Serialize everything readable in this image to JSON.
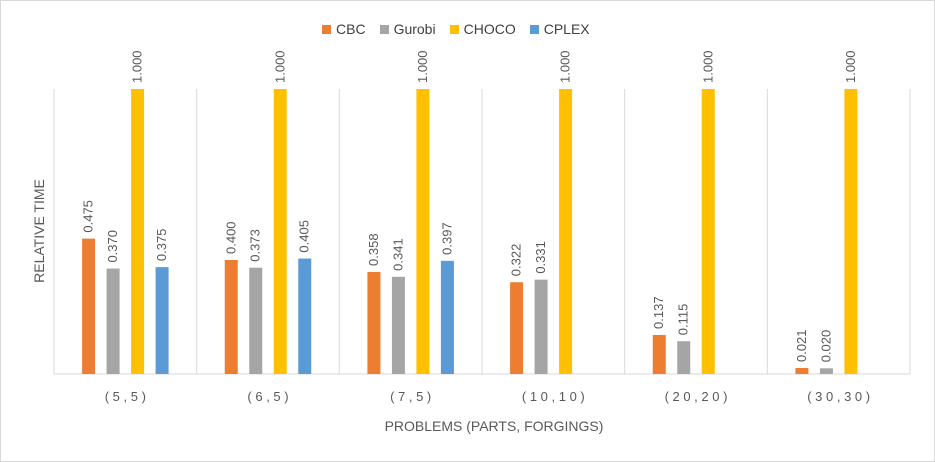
{
  "chart_data": {
    "type": "bar",
    "title": "",
    "xlabel": "PROBLEMS (PARTS, FORGINGS)",
    "ylabel": "RELATIVE TIME",
    "ylim": [
      0,
      1.0
    ],
    "grid": false,
    "legend_position": "top",
    "categories": [
      "( 5 , 5 )",
      "( 6 , 5 )",
      "( 7 , 5 )",
      "( 1 0 , 1 0 )",
      "( 2 0 , 2 0 )",
      "( 3 0 , 3 0 )"
    ],
    "series": [
      {
        "name": "CBC",
        "color": "#ed7d31",
        "values": [
          0.475,
          0.4,
          0.358,
          0.322,
          0.137,
          0.021
        ],
        "labels": [
          "0.475",
          "0.400",
          "0.358",
          "0.322",
          "0.137",
          "0.021"
        ]
      },
      {
        "name": "Gurobi",
        "color": "#a5a5a5",
        "values": [
          0.37,
          0.373,
          0.341,
          0.331,
          0.115,
          0.02
        ],
        "labels": [
          "0.370",
          "0.373",
          "0.341",
          "0.331",
          "0.115",
          "0.020"
        ]
      },
      {
        "name": "CHOCO",
        "color": "#ffc000",
        "values": [
          1.0,
          1.0,
          1.0,
          1.0,
          1.0,
          1.0
        ],
        "labels": [
          "1.000",
          "1.000",
          "1.000",
          "1.000",
          "1.000",
          "1.000"
        ]
      },
      {
        "name": "CPLEX",
        "color": "#5b9bd5",
        "values": [
          0.375,
          0.405,
          0.397,
          null,
          null,
          null
        ],
        "labels": [
          "0.375",
          "0.405",
          "0.397",
          null,
          null,
          null
        ]
      }
    ]
  }
}
